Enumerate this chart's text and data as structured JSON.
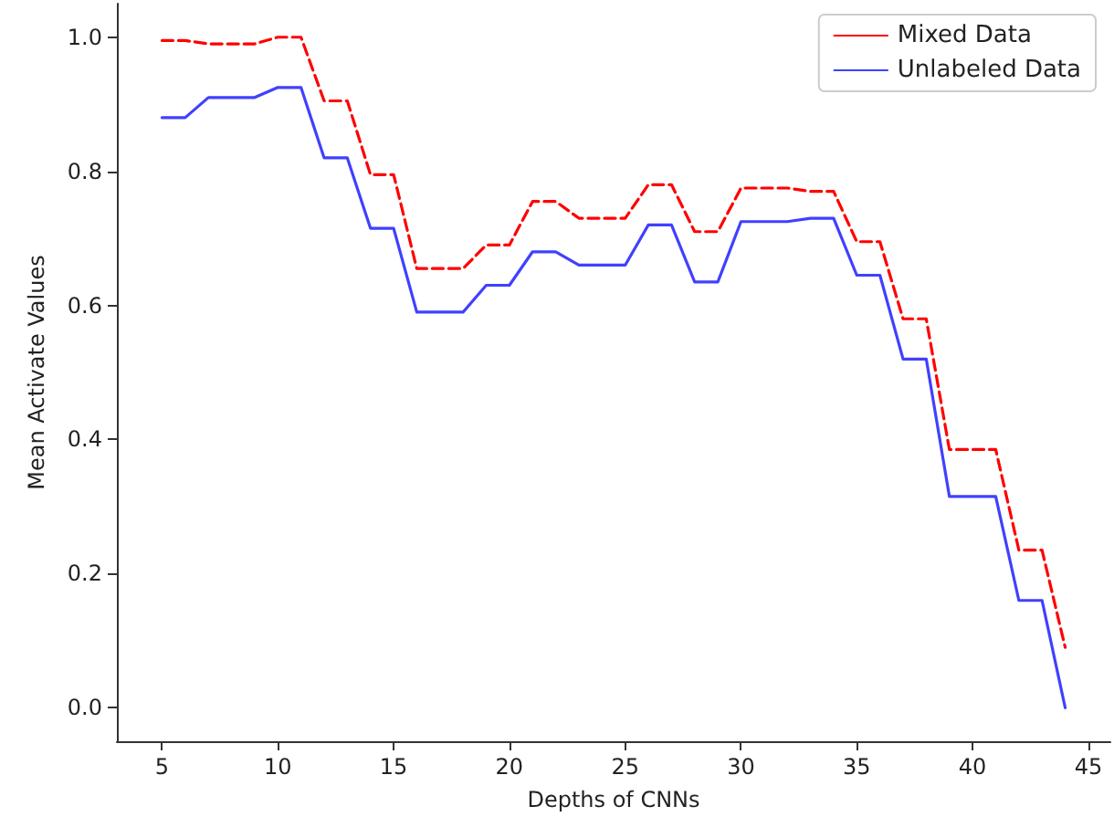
{
  "chart_data": {
    "type": "line",
    "xlabel": "Depths of CNNs",
    "ylabel": "Mean Activate Values",
    "x": [
      5,
      6,
      7,
      8,
      9,
      10,
      11,
      12,
      13,
      14,
      15,
      16,
      17,
      18,
      19,
      20,
      21,
      22,
      23,
      24,
      25,
      26,
      27,
      28,
      29,
      30,
      31,
      32,
      33,
      34,
      35,
      36,
      37,
      38,
      39,
      40,
      41,
      42,
      43,
      44
    ],
    "series": [
      {
        "name": "Mixed Data",
        "color": "#ff0000",
        "line_style": "dashed",
        "values": [
          0.995,
          0.995,
          0.99,
          0.99,
          0.99,
          1.0,
          1.0,
          0.905,
          0.905,
          0.795,
          0.795,
          0.655,
          0.655,
          0.655,
          0.69,
          0.69,
          0.755,
          0.755,
          0.73,
          0.73,
          0.73,
          0.78,
          0.78,
          0.71,
          0.71,
          0.775,
          0.775,
          0.775,
          0.77,
          0.77,
          0.695,
          0.695,
          0.58,
          0.58,
          0.385,
          0.385,
          0.385,
          0.235,
          0.235,
          0.09
        ]
      },
      {
        "name": "Unlabeled Data",
        "color": "#4040ff",
        "line_style": "solid",
        "values": [
          0.88,
          0.88,
          0.91,
          0.91,
          0.91,
          0.925,
          0.925,
          0.82,
          0.82,
          0.715,
          0.715,
          0.59,
          0.59,
          0.59,
          0.63,
          0.63,
          0.68,
          0.68,
          0.66,
          0.66,
          0.66,
          0.72,
          0.72,
          0.635,
          0.635,
          0.725,
          0.725,
          0.725,
          0.73,
          0.73,
          0.645,
          0.645,
          0.52,
          0.52,
          0.315,
          0.315,
          0.315,
          0.16,
          0.16,
          0.0
        ]
      }
    ],
    "xlim": [
      3.05,
      45.95
    ],
    "xticks": [
      5,
      10,
      15,
      20,
      25,
      30,
      35,
      40,
      45
    ],
    "ylim": [
      -0.05,
      1.05
    ],
    "yticks": [
      {
        "value": 0,
        "label": "0.0"
      },
      {
        "value": 0.2,
        "label": "0.2"
      },
      {
        "value": 0.4,
        "label": "0.4"
      },
      {
        "value": 0.6,
        "label": "0.6"
      },
      {
        "value": 0.8,
        "label": "0.8"
      },
      {
        "value": 1.0,
        "label": "1.0"
      }
    ],
    "grid": false,
    "legend": "top right",
    "marker": "none"
  }
}
